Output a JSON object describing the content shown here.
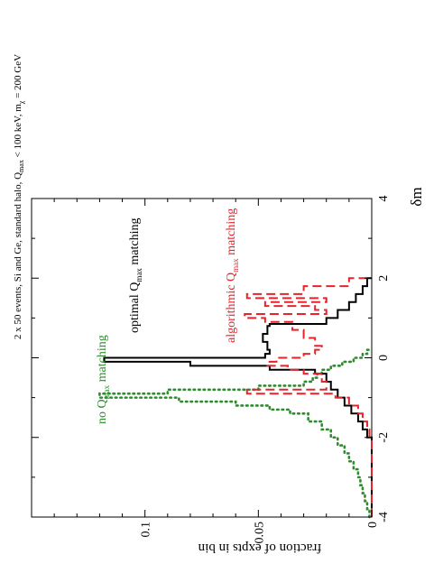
{
  "chart_data": {
    "type": "line",
    "orientation": "rotated-90-ccw",
    "title": "2 x 50 events, Si and Ge, standard halo, Q",
    "title_sub1": "max",
    "title_mid": " < 100 keV, m",
    "title_sub2": "χ",
    "title_end": " = 200 GeV",
    "xlabel": "δm",
    "ylabel": "fraction of expts in bin",
    "xlim": [
      -4,
      4
    ],
    "ylim": [
      0,
      0.15
    ],
    "xticks": [
      "-4",
      "-2",
      "0",
      "2",
      "4"
    ],
    "yticks": [
      "0",
      "0.05",
      "0.1"
    ],
    "grid": false,
    "annotations": {
      "no_match": {
        "pre": "no Q",
        "sub": "max",
        "post": "  matching",
        "color": "#2e8b2e"
      },
      "optimal": {
        "pre": "optimal Q",
        "sub": "max",
        "post": "  matching",
        "color": "#000000"
      },
      "algorithmic": {
        "pre": "algorithmic Q",
        "sub": "max",
        "post": "  matching",
        "color": "#e8232a"
      }
    },
    "series": [
      {
        "key": "no_match",
        "color": "#2e8b2e",
        "style": "dotted",
        "x": [
          -4.0,
          -3.8,
          -3.6,
          -3.4,
          -3.2,
          -3.0,
          -2.8,
          -2.6,
          -2.4,
          -2.2,
          -2.0,
          -1.8,
          -1.6,
          -1.4,
          -1.3,
          -1.2,
          -1.1,
          -1.0,
          -0.9,
          -0.8,
          -0.7,
          -0.6,
          -0.5,
          -0.4,
          -0.3,
          -0.2,
          -0.1,
          0.0,
          0.1,
          0.2
        ],
        "y": [
          0.001,
          0.002,
          0.003,
          0.004,
          0.005,
          0.006,
          0.008,
          0.01,
          0.012,
          0.015,
          0.018,
          0.022,
          0.028,
          0.036,
          0.045,
          0.06,
          0.085,
          0.12,
          0.09,
          0.05,
          0.03,
          0.026,
          0.024,
          0.022,
          0.018,
          0.013,
          0.008,
          0.004,
          0.002,
          0.0
        ]
      },
      {
        "key": "optimal",
        "color": "#000000",
        "style": "solid",
        "x": [
          -4.0,
          -3.0,
          -2.0,
          -1.8,
          -1.6,
          -1.4,
          -1.2,
          -1.0,
          -0.8,
          -0.6,
          -0.4,
          -0.3,
          -0.2,
          -0.1,
          0.0,
          0.1,
          0.2,
          0.4,
          0.6,
          0.8,
          0.85,
          1.0,
          1.2,
          1.4,
          1.6,
          1.8,
          2.0
        ],
        "y": [
          0.0,
          0.0,
          0.002,
          0.004,
          0.006,
          0.009,
          0.012,
          0.015,
          0.018,
          0.02,
          0.025,
          0.045,
          0.08,
          0.118,
          0.047,
          0.045,
          0.046,
          0.048,
          0.046,
          0.045,
          0.02,
          0.015,
          0.01,
          0.007,
          0.004,
          0.002,
          0.0
        ]
      },
      {
        "key": "algorithmic",
        "color": "#e8232a",
        "style": "dashed",
        "x": [
          -4.0,
          -3.0,
          -2.0,
          -1.8,
          -1.6,
          -1.4,
          -1.2,
          -1.0,
          -0.9,
          -0.8,
          -0.6,
          -0.4,
          -0.3,
          -0.2,
          -0.1,
          0.0,
          0.1,
          0.2,
          0.3,
          0.5,
          0.7,
          0.9,
          1.0,
          1.1,
          1.2,
          1.3,
          1.4,
          1.5,
          1.6,
          1.8,
          2.0
        ],
        "y": [
          0.0,
          0.0,
          0.001,
          0.002,
          0.004,
          0.006,
          0.01,
          0.016,
          0.055,
          0.02,
          0.022,
          0.03,
          0.037,
          0.046,
          0.042,
          0.03,
          0.025,
          0.022,
          0.025,
          0.03,
          0.035,
          0.047,
          0.056,
          0.02,
          0.025,
          0.047,
          0.02,
          0.055,
          0.03,
          0.01,
          0.0
        ]
      }
    ]
  }
}
